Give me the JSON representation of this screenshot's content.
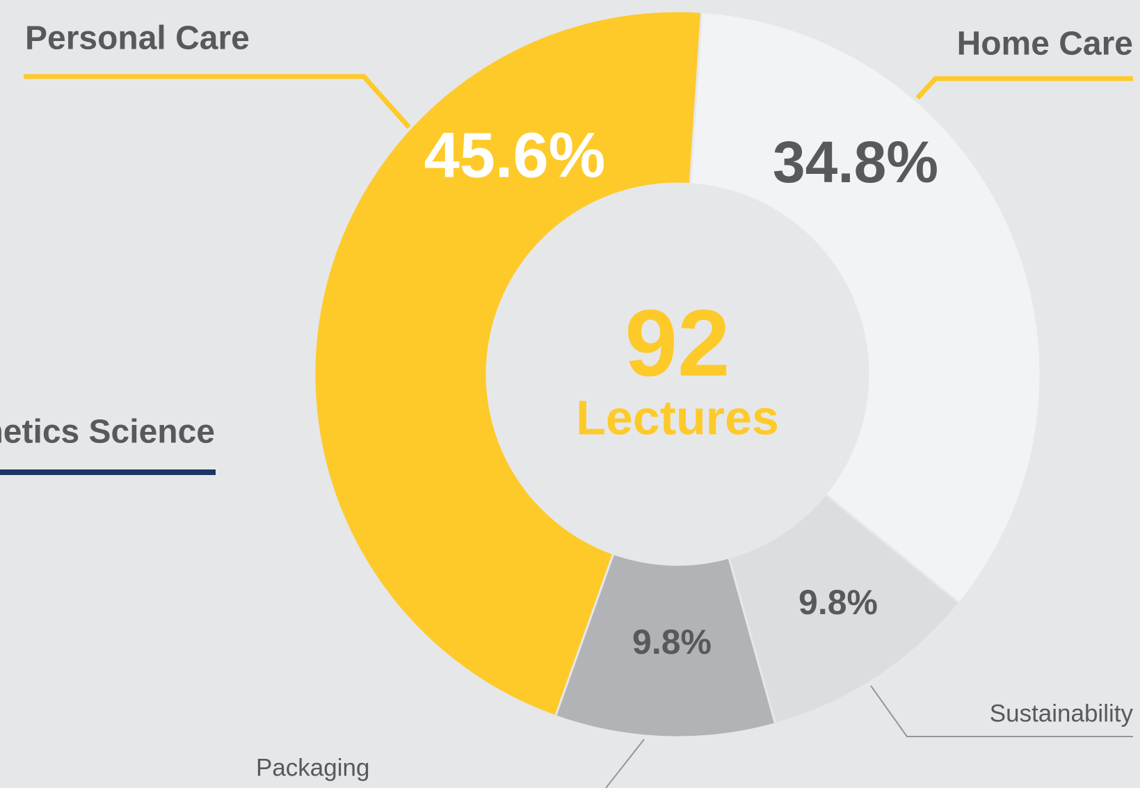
{
  "chart_data": {
    "type": "donut",
    "categories": [
      "Home Care",
      "Sustainability",
      "Packaging",
      "Personal Care"
    ],
    "values": [
      34.8,
      9.8,
      9.8,
      45.6
    ],
    "value_labels": [
      "34.8%",
      "9.8%",
      "9.8%",
      "45.6%"
    ],
    "colors": [
      "#f2f3f4",
      "#dcddde",
      "#b2b3b6",
      "#fdca2a"
    ],
    "center_value": 92,
    "center_label": "Lectures",
    "extra_label": {
      "text": "Cosmetics Science",
      "color": "#1b3564"
    }
  }
}
